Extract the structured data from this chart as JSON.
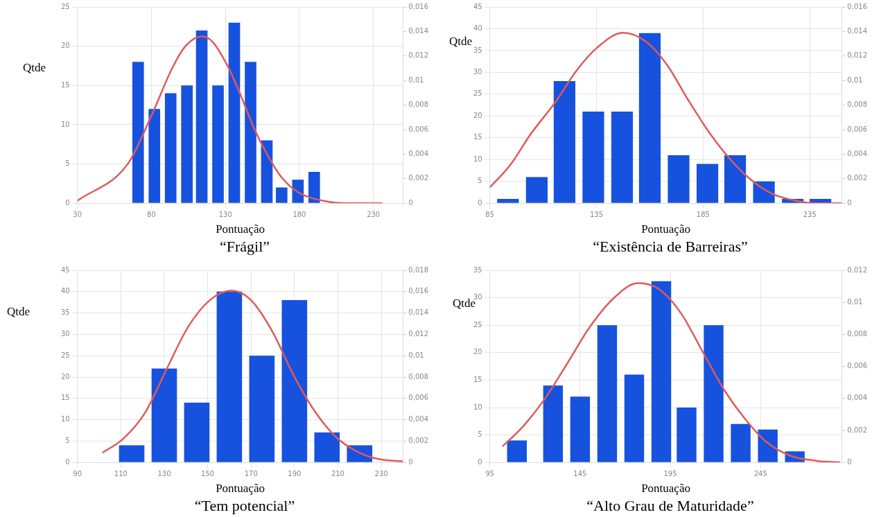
{
  "chart_data": [
    {
      "type": "bar",
      "title": "“Frágil”",
      "xlabel": "Pontuação",
      "ylabel": "Qtde",
      "grid": true,
      "xlim": [
        30,
        250
      ],
      "xticks": [
        30,
        80,
        130,
        180,
        230
      ],
      "ylim": [
        0,
        25
      ],
      "yticks": [
        0,
        5,
        10,
        15,
        20,
        25
      ],
      "y2lim": [
        0,
        0.016
      ],
      "y2ticks": [
        {
          "value": 0,
          "label": "0"
        },
        {
          "value": 0.002,
          "label": "0,002"
        },
        {
          "value": 0.004,
          "label": "0,004"
        },
        {
          "value": 0.006,
          "label": "0,006"
        },
        {
          "value": 0.008,
          "label": "0,008"
        },
        {
          "value": 0.01,
          "label": "0,01"
        },
        {
          "value": 0.012,
          "label": "0,012"
        },
        {
          "value": 0.014,
          "label": "0,014"
        },
        {
          "value": 0.016,
          "label": "0,016"
        }
      ],
      "series": [
        {
          "color": "#1652de",
          "x": [
            71,
            82,
            93,
            104,
            114,
            125,
            136,
            147,
            158,
            168,
            179,
            190
          ],
          "values": [
            18,
            12,
            14,
            15,
            22,
            15,
            23,
            18,
            8,
            2,
            3,
            4
          ]
        },
        {
          "type": "line",
          "axis": "y2",
          "color": "#e05a5a",
          "x": [
            30,
            64,
            81,
            94,
            103,
            114,
            121,
            131,
            140,
            149,
            159,
            168,
            179,
            196,
            214,
            236
          ],
          "values": [
            0.0002,
            0.0032,
            0.0074,
            0.011,
            0.0128,
            0.0136,
            0.0132,
            0.0113,
            0.0089,
            0.0062,
            0.0038,
            0.0021,
            0.0009,
            0.0002,
            0,
            0
          ]
        }
      ]
    },
    {
      "type": "bar",
      "title": "“Existência de Barreiras”",
      "xlabel": "Pontuação",
      "ylabel": "Qtde",
      "grid": true,
      "xlim": [
        85,
        250
      ],
      "xticks": [
        85,
        135,
        185,
        235
      ],
      "ylim": [
        0,
        45
      ],
      "yticks": [
        0,
        5,
        10,
        15,
        20,
        25,
        30,
        35,
        40,
        45
      ],
      "y2lim": [
        0,
        0.016
      ],
      "y2ticks": [
        {
          "value": 0,
          "label": "0"
        },
        {
          "value": 0.002,
          "label": "0,002"
        },
        {
          "value": 0.004,
          "label": "0,004"
        },
        {
          "value": 0.006,
          "label": "0,006"
        },
        {
          "value": 0.008,
          "label": "0,008"
        },
        {
          "value": 0.01,
          "label": "0,01"
        },
        {
          "value": 0.012,
          "label": "0,012"
        },
        {
          "value": 0.014,
          "label": "0,014"
        },
        {
          "value": 0.016,
          "label": "0,016"
        }
      ],
      "series": [
        {
          "color": "#1652de",
          "x": [
            93.5,
            107,
            120,
            133.5,
            147,
            160,
            173.5,
            187,
            200,
            213.5,
            227,
            240
          ],
          "values": [
            1,
            6,
            28,
            21,
            21,
            39,
            11,
            9,
            11,
            5,
            1,
            1
          ]
        },
        {
          "type": "line",
          "axis": "y2",
          "color": "#e05a5a",
          "x": [
            85,
            94.5,
            104,
            116,
            125.6,
            135.4,
            147.4,
            158,
            168,
            177.7,
            187.7,
            197.6,
            207.5,
            217,
            228.6,
            238.5,
            250
          ],
          "values": [
            0.0013,
            0.0031,
            0.0056,
            0.0083,
            0.0108,
            0.0127,
            0.0139,
            0.0132,
            0.0113,
            0.0085,
            0.0058,
            0.0036,
            0.0019,
            0.0008,
            0.0002,
            0,
            0
          ]
        }
      ]
    },
    {
      "type": "bar",
      "title": "“Tem potencial”",
      "xlabel": "Pontuação",
      "ylabel": "Qtde",
      "grid": true,
      "xlim": [
        90,
        240
      ],
      "xticks": [
        90,
        110,
        130,
        150,
        170,
        190,
        210,
        230
      ],
      "ylim": [
        0,
        45
      ],
      "yticks": [
        0,
        5,
        10,
        15,
        20,
        25,
        30,
        35,
        40,
        45
      ],
      "y2lim": [
        0,
        0.018
      ],
      "y2ticks": [
        {
          "value": 0,
          "label": "0"
        },
        {
          "value": 0.002,
          "label": "0,002"
        },
        {
          "value": 0.004,
          "label": "0,004"
        },
        {
          "value": 0.006,
          "label": "0,006"
        },
        {
          "value": 0.008,
          "label": "0,008"
        },
        {
          "value": 0.01,
          "label": "0,01"
        },
        {
          "value": 0.012,
          "label": "0,012"
        },
        {
          "value": 0.014,
          "label": "0,014"
        },
        {
          "value": 0.016,
          "label": "0,016"
        },
        {
          "value": 0.018,
          "label": "0,018"
        }
      ],
      "series": [
        {
          "color": "#1652de",
          "x": [
            115,
            130,
            145,
            160,
            175,
            190,
            205,
            220
          ],
          "values": [
            4,
            22,
            14,
            40,
            25,
            38,
            7,
            4
          ]
        },
        {
          "type": "line",
          "axis": "y2",
          "color": "#e05a5a",
          "x": [
            101.5,
            111,
            121,
            131,
            141,
            151,
            161,
            170,
            180,
            189,
            199,
            209,
            219,
            229,
            240
          ],
          "values": [
            0.0009,
            0.0022,
            0.0046,
            0.0087,
            0.0127,
            0.0152,
            0.0161,
            0.0152,
            0.0122,
            0.0084,
            0.0049,
            0.0024,
            0.001,
            0.0003,
            0.0001
          ]
        }
      ]
    },
    {
      "type": "bar",
      "title": "“Alto Grau de Maturidade”",
      "xlabel": "Pontuação",
      "ylabel": "Qtde",
      "grid": true,
      "xlim": [
        95,
        290
      ],
      "xticks": [
        95,
        145,
        195,
        245
      ],
      "ylim": [
        0,
        35
      ],
      "yticks": [
        0,
        5,
        10,
        15,
        20,
        25,
        30,
        35
      ],
      "y2lim": [
        0,
        0.012
      ],
      "y2ticks": [
        {
          "value": 0,
          "label": "0"
        },
        {
          "value": 0.002,
          "label": "0,002"
        },
        {
          "value": 0.004,
          "label": "0,004"
        },
        {
          "value": 0.006,
          "label": "0,006"
        },
        {
          "value": 0.008,
          "label": "0,008"
        },
        {
          "value": 0.01,
          "label": "0,01"
        },
        {
          "value": 0.012,
          "label": "0,012"
        }
      ],
      "series": [
        {
          "color": "#1652de",
          "x": [
            110,
            130,
            145,
            160,
            175,
            190,
            204,
            219,
            234,
            249,
            264
          ],
          "values": [
            4,
            14,
            12,
            25,
            16,
            33,
            10,
            25,
            7,
            6,
            2
          ]
        },
        {
          "type": "line",
          "axis": "y2",
          "color": "#e05a5a",
          "x": [
            102,
            113,
            125,
            138,
            150,
            164,
            177,
            189,
            201,
            213,
            225,
            236.5,
            248,
            262,
            276,
            289
          ],
          "values": [
            0.001,
            0.0022,
            0.0039,
            0.0062,
            0.0084,
            0.0103,
            0.0112,
            0.0108,
            0.0093,
            0.0069,
            0.0045,
            0.0027,
            0.0013,
            0.0004,
            0.0001,
            0
          ]
        }
      ]
    }
  ]
}
